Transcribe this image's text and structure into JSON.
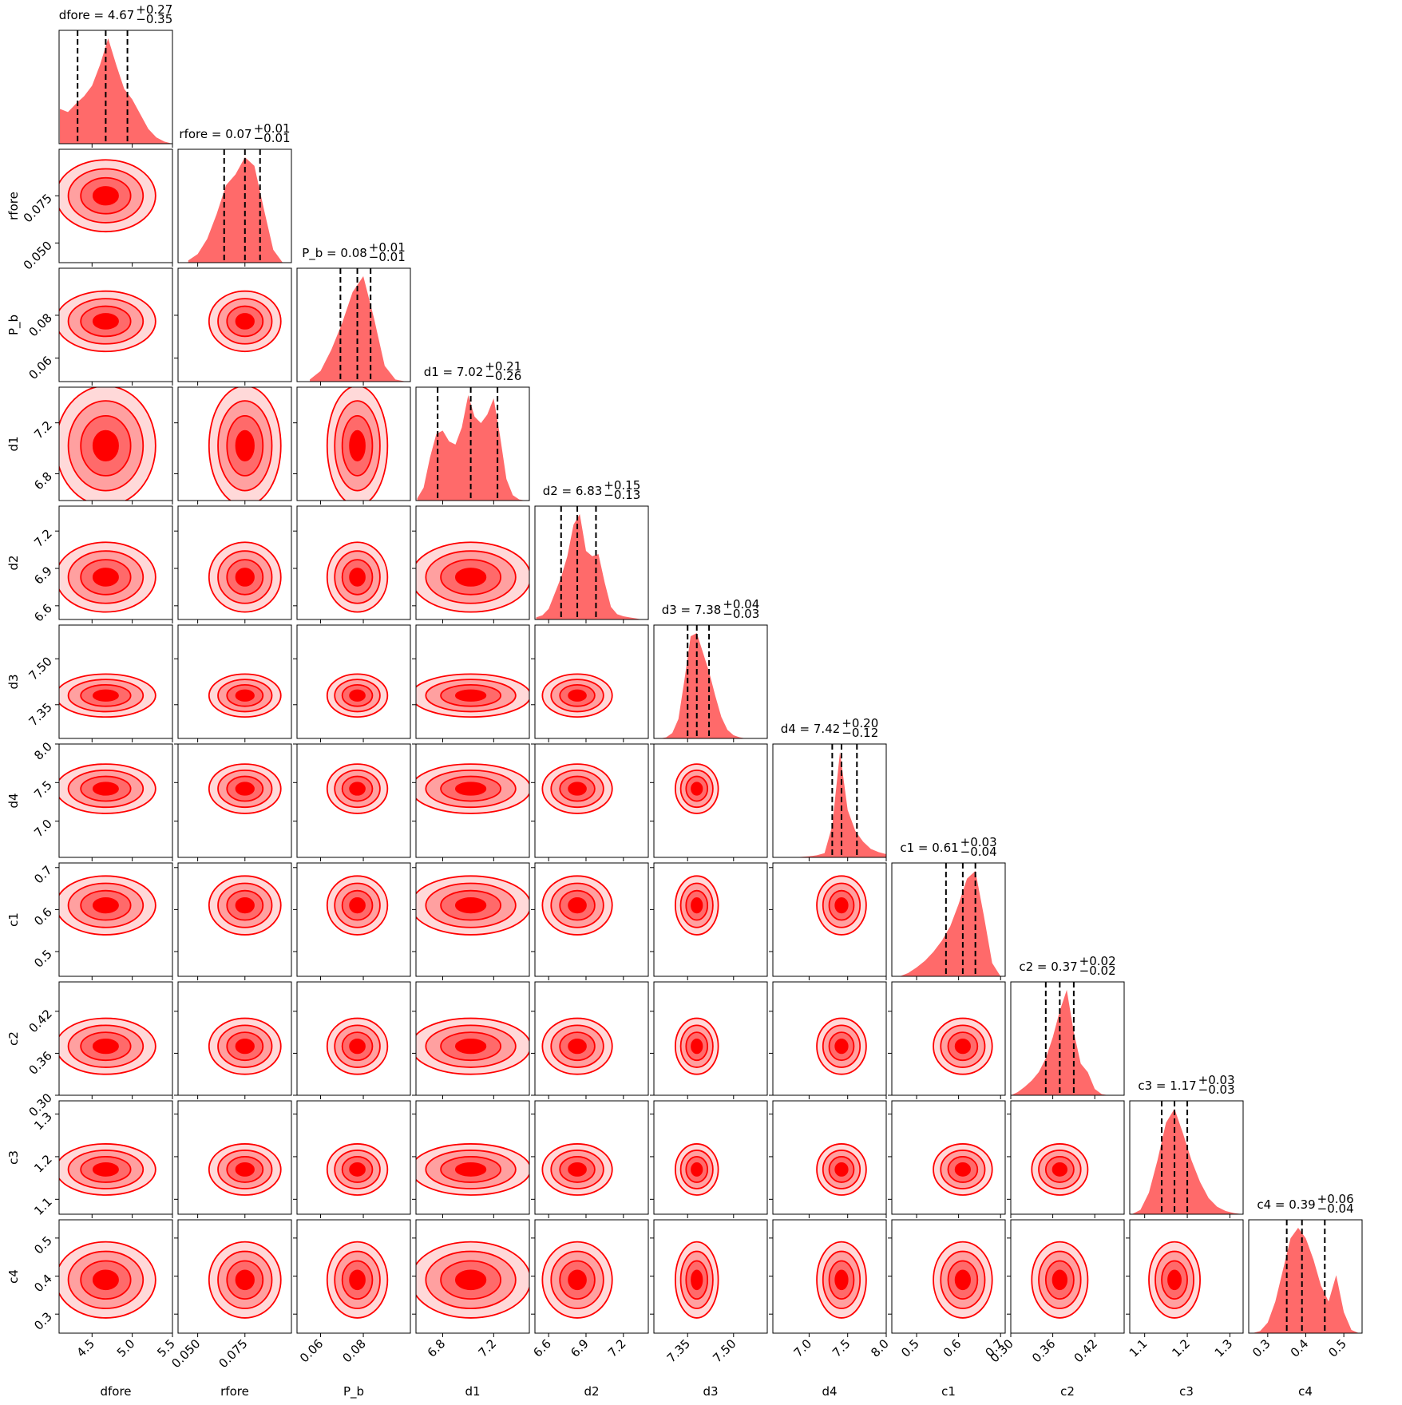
{
  "chart_data": {
    "type": "corner",
    "color": "#ff0000",
    "hist_color": "#ff6a6a",
    "params": [
      {
        "label": "dfore",
        "title": "dfore = 4.67",
        "upper": "+0.27",
        "lower": "−0.35",
        "quantiles": [
          4.32,
          4.67,
          4.94
        ],
        "lim": [
          4.09,
          5.5
        ],
        "ticks": [
          4.5,
          {
            "value": 5,
            "label": "5.0"
          },
          5.5
        ],
        "hist": {
          "x": [
            4.1,
            4.2,
            4.3,
            4.4,
            4.5,
            4.6,
            4.7,
            4.8,
            4.9,
            5.0,
            5.1,
            5.2,
            5.3,
            5.4,
            5.5
          ],
          "values": [
            0.33,
            0.3,
            0.38,
            0.45,
            0.55,
            0.75,
            1.0,
            0.75,
            0.52,
            0.42,
            0.28,
            0.14,
            0.06,
            0.02,
            0
          ]
        }
      },
      {
        "label": "rfore",
        "title": "rfore = 0.07",
        "upper": "+0.01",
        "lower": "−0.01",
        "quantiles": [
          0.064,
          0.075,
          0.083
        ],
        "lim": [
          0.0396,
          0.0996
        ],
        "ticks": [
          {
            "value": 0.05,
            "label": "0.050"
          },
          {
            "value": 0.075,
            "label": "0.075"
          }
        ],
        "hist": {
          "x": [
            0.045,
            0.05,
            0.055,
            0.06,
            0.065,
            0.07,
            0.075,
            0.08,
            0.085,
            0.09,
            0.095
          ],
          "values": [
            0.02,
            0.08,
            0.22,
            0.45,
            0.72,
            0.82,
            0.98,
            0.9,
            0.5,
            0.12,
            0
          ]
        }
      },
      {
        "label": "P_b",
        "title": "P_b = 0.08",
        "upper": "+0.01",
        "lower": "−0.01",
        "quantiles": [
          0.0693,
          0.0772,
          0.0834
        ],
        "lim": [
          0.049,
          0.102
        ],
        "ticks": [
          0.06,
          0.08
        ],
        "hist": {
          "x": [
            0.055,
            0.06,
            0.065,
            0.07,
            0.075,
            0.08,
            0.085,
            0.09,
            0.095,
            0.1
          ],
          "values": [
            0.02,
            0.1,
            0.3,
            0.55,
            0.85,
            1.0,
            0.6,
            0.15,
            0.02,
            0
          ]
        }
      },
      {
        "label": "d1",
        "title": "d1 = 7.02",
        "upper": "+0.21",
        "lower": "−0.26",
        "quantiles": [
          6.76,
          7.02,
          7.23
        ],
        "lim": [
          6.59,
          7.48
        ],
        "ticks": [
          6.8,
          7.2
        ],
        "hist": {
          "x": [
            6.6,
            6.65,
            6.7,
            6.75,
            6.8,
            6.85,
            6.9,
            6.95,
            7.0,
            7.05,
            7.1,
            7.15,
            7.2,
            7.25,
            7.3,
            7.35,
            7.4,
            7.45
          ],
          "values": [
            0.02,
            0.12,
            0.4,
            0.62,
            0.65,
            0.55,
            0.52,
            0.68,
            0.98,
            0.78,
            0.72,
            0.8,
            0.95,
            0.6,
            0.2,
            0.05,
            0.01,
            0
          ]
        }
      },
      {
        "label": "d2",
        "title": "d2 = 6.83",
        "upper": "+0.15",
        "lower": "−0.13",
        "quantiles": [
          6.7,
          6.83,
          6.98
        ],
        "lim": [
          6.49,
          7.4
        ],
        "ticks": [
          6.6,
          6.9,
          7.2
        ],
        "hist": {
          "x": [
            6.5,
            6.55,
            6.6,
            6.65,
            6.7,
            6.75,
            6.8,
            6.85,
            6.9,
            6.95,
            7.0,
            7.05,
            7.1,
            7.15,
            7.2,
            7.25,
            7.3,
            7.35
          ],
          "values": [
            0.02,
            0.04,
            0.1,
            0.25,
            0.4,
            0.6,
            0.9,
            1.0,
            0.65,
            0.6,
            0.62,
            0.35,
            0.12,
            0.05,
            0.03,
            0.02,
            0.01,
            0
          ]
        }
      },
      {
        "label": "d3",
        "title": "d3 = 7.38",
        "upper": "+0.04",
        "lower": "−0.03",
        "quantiles": [
          7.35,
          7.38,
          7.42
        ],
        "lim": [
          7.24,
          7.61
        ],
        "ticks": [
          7.35,
          {
            "value": 7.5,
            "label": "7.50"
          }
        ],
        "hist": {
          "x": [
            7.26,
            7.28,
            7.3,
            7.32,
            7.34,
            7.36,
            7.38,
            7.4,
            7.42,
            7.44,
            7.46,
            7.48,
            7.5,
            7.52,
            7.54,
            7.56
          ],
          "values": [
            0,
            0.01,
            0.05,
            0.18,
            0.55,
            0.95,
            0.98,
            0.8,
            0.62,
            0.4,
            0.2,
            0.08,
            0.03,
            0.01,
            0,
            0
          ]
        }
      },
      {
        "label": "d4",
        "title": "d4 = 7.42",
        "upper": "+0.20",
        "lower": "−0.12",
        "quantiles": [
          7.3,
          7.42,
          7.62
        ],
        "lim": [
          6.53,
          8.0
        ],
        "ticks": [
          {
            "value": 7,
            "label": "7.0"
          },
          7.5,
          {
            "value": 8,
            "label": "8.0"
          }
        ],
        "hist": {
          "x": [
            6.6,
            6.7,
            6.8,
            6.9,
            7.0,
            7.1,
            7.2,
            7.3,
            7.4,
            7.5,
            7.6,
            7.7,
            7.8,
            7.9,
            8.0
          ],
          "values": [
            0,
            0,
            0,
            0.005,
            0.01,
            0.02,
            0.04,
            0.3,
            1.0,
            0.45,
            0.25,
            0.15,
            0.08,
            0.05,
            0.03
          ]
        }
      },
      {
        "label": "c1",
        "title": "c1 = 0.61",
        "upper": "+0.03",
        "lower": "−0.04",
        "quantiles": [
          0.57,
          0.61,
          0.64
        ],
        "lim": [
          0.441,
          0.711
        ],
        "ticks": [
          0.5,
          0.6,
          0.7
        ],
        "hist": {
          "x": [
            0.46,
            0.48,
            0.5,
            0.52,
            0.54,
            0.56,
            0.58,
            0.6,
            0.62,
            0.64,
            0.66,
            0.68,
            0.7
          ],
          "values": [
            0,
            0.03,
            0.08,
            0.14,
            0.22,
            0.32,
            0.45,
            0.65,
            0.88,
            0.95,
            0.55,
            0.12,
            0
          ]
        }
      },
      {
        "label": "c2",
        "title": "c2 = 0.37",
        "upper": "+0.02",
        "lower": "−0.02",
        "quantiles": [
          0.35,
          0.37,
          0.39
        ],
        "lim": [
          0.3,
          0.462
        ],
        "ticks": [
          {
            "value": 0.3,
            "label": "0.30"
          },
          0.36,
          0.42
        ],
        "hist": {
          "x": [
            0.3,
            0.31,
            0.32,
            0.33,
            0.34,
            0.35,
            0.36,
            0.37,
            0.38,
            0.39,
            0.4,
            0.41,
            0.42,
            0.43,
            0.44
          ],
          "values": [
            0,
            0.03,
            0.08,
            0.14,
            0.22,
            0.35,
            0.55,
            0.8,
            1.0,
            0.6,
            0.3,
            0.22,
            0.06,
            0.01,
            0
          ]
        }
      },
      {
        "label": "c3",
        "title": "c3 = 1.17",
        "upper": "+0.03",
        "lower": "−0.03",
        "quantiles": [
          1.14,
          1.17,
          1.2
        ],
        "lim": [
          1.065,
          1.331
        ],
        "ticks": [
          1.1,
          1.2,
          1.3
        ],
        "hist": {
          "x": [
            1.07,
            1.09,
            1.11,
            1.13,
            1.15,
            1.17,
            1.19,
            1.21,
            1.23,
            1.25,
            1.27,
            1.29,
            1.31,
            1.33
          ],
          "values": [
            0,
            0.04,
            0.2,
            0.5,
            0.85,
            0.98,
            0.75,
            0.5,
            0.3,
            0.15,
            0.07,
            0.03,
            0.01,
            0
          ]
        }
      },
      {
        "label": "c4",
        "title": "c4 = 0.39",
        "upper": "+0.06",
        "lower": "−0.04",
        "quantiles": [
          0.35,
          0.39,
          0.45
        ],
        "lim": [
          0.25,
          0.548
        ],
        "ticks": [
          0.3,
          0.4,
          0.5
        ],
        "hist": {
          "x": [
            0.26,
            0.28,
            0.3,
            0.32,
            0.34,
            0.36,
            0.38,
            0.4,
            0.42,
            0.44,
            0.46,
            0.48,
            0.5,
            0.52,
            0.54
          ],
          "values": [
            0,
            0.02,
            0.1,
            0.3,
            0.6,
            0.9,
            1.0,
            0.9,
            0.7,
            0.45,
            0.3,
            0.55,
            0.2,
            0.03,
            0
          ]
        }
      }
    ]
  }
}
